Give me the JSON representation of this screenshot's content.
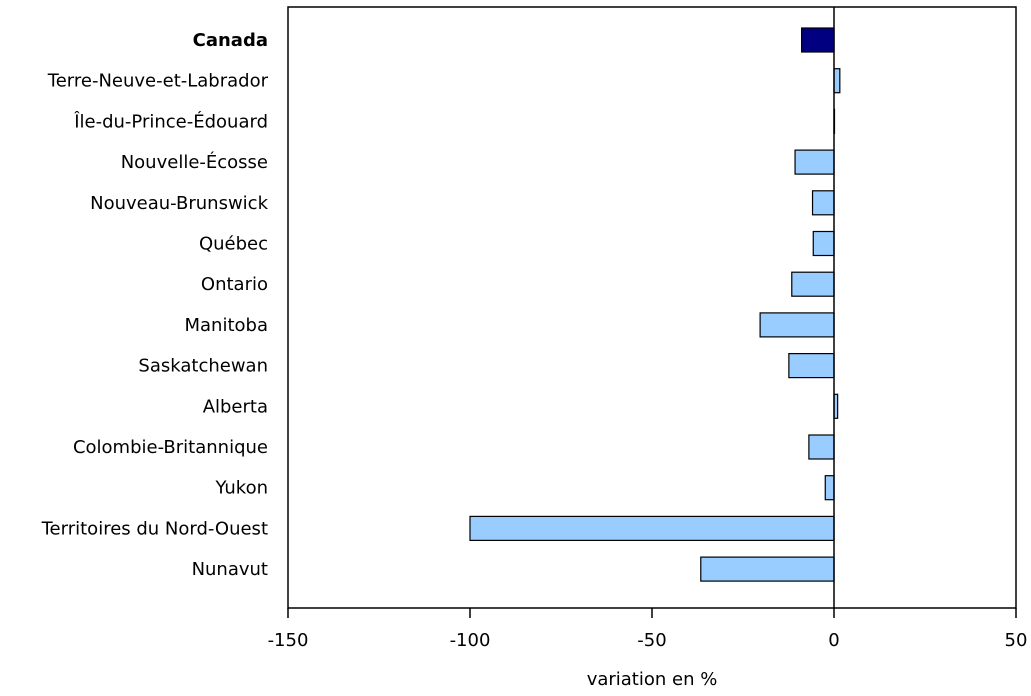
{
  "chart_data": {
    "type": "bar",
    "orientation": "horizontal",
    "categories": [
      "Canada",
      "Terre-Neuve-et-Labrador",
      "Île-du-Prince-Édouard",
      "Nouvelle-Écosse",
      "Nouveau-Brunswick",
      "Québec",
      "Ontario",
      "Manitoba",
      "Saskatchewan",
      "Alberta",
      "Colombie-Britannique",
      "Yukon",
      "Territoires du Nord-Ouest",
      "Nunavut"
    ],
    "values": [
      -8.9,
      1.6,
      0.0,
      -10.7,
      -5.9,
      -5.7,
      -11.6,
      -20.3,
      -12.4,
      1.0,
      -6.9,
      -2.4,
      -100.0,
      -36.6
    ],
    "highlight_category": "Canada",
    "xlabel": "variation en %",
    "ylabel": "",
    "xlim": [
      -150,
      50
    ],
    "xticks": [
      -150,
      -100,
      -50,
      0,
      50
    ],
    "tick_labels": [
      "-150",
      "-100",
      "-50",
      "0",
      "50"
    ],
    "grid": false,
    "legend": false,
    "colors": {
      "highlight": "#000080",
      "bar": "#99ccff",
      "stroke": "#000000"
    }
  }
}
